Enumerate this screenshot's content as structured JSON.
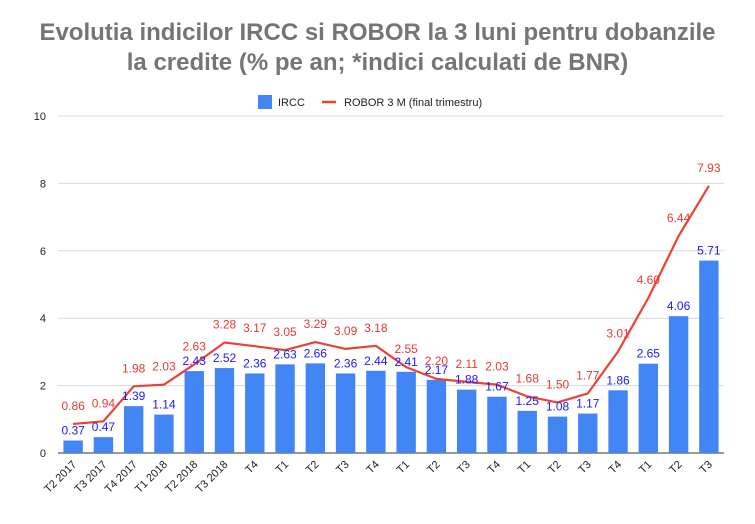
{
  "chart_data": {
    "type": "bar",
    "title_lines": [
      "Evolutia indicilor IRCC si ROBOR la 3 luni pentru dobanzile",
      "la credite (% pe an; *indici calculati de BNR)"
    ],
    "categories": [
      "T2 2017",
      "T3 2017",
      "T4 2017",
      "T1 2018",
      "T2 2018",
      "T3 2018",
      "T4",
      "T1",
      "T2",
      "T3",
      "T4",
      "T1",
      "T2",
      "T3",
      "T4",
      "T1",
      "T2",
      "T3",
      "T4",
      "T1",
      "T2",
      "T3"
    ],
    "series": [
      {
        "name": "IRCC",
        "type": "bar",
        "color": "#4285f4",
        "label_color": "#1a1aff",
        "values": [
          0.37,
          0.47,
          1.39,
          1.14,
          2.43,
          2.52,
          2.36,
          2.63,
          2.66,
          2.36,
          2.44,
          2.41,
          2.17,
          1.88,
          1.67,
          1.25,
          1.08,
          1.17,
          1.86,
          2.65,
          4.06,
          5.71
        ],
        "labels": [
          "0.37",
          "0.47",
          "1.39",
          "1.14",
          "2.43",
          "2.52",
          "2.36",
          "2.63",
          "2.66",
          "2.36",
          "2.44",
          "2.41",
          "2.17",
          "1.88",
          "1.67",
          "1.25",
          "1.08",
          "1.17",
          "1.86",
          "2.65",
          "4.06",
          "5.71"
        ]
      },
      {
        "name": "ROBOR 3 M (final trimestru)",
        "type": "line",
        "color": "#ea4335",
        "label_color": "#e53935",
        "values": [
          0.86,
          0.94,
          1.98,
          2.03,
          2.63,
          3.28,
          3.17,
          3.05,
          3.29,
          3.09,
          3.18,
          2.55,
          2.2,
          2.11,
          2.03,
          1.68,
          1.5,
          1.77,
          3.01,
          4.6,
          6.44,
          7.93
        ],
        "labels": [
          "0.86",
          "0.94",
          "1.98",
          "2.03",
          "2.63",
          "3.28",
          "3.17",
          "3.05",
          "3.29",
          "3.09",
          "3.18",
          "2.55",
          "2.20",
          "2.11",
          "2.03",
          "1.68",
          "1.50",
          "1.77",
          "3.01",
          "4.60",
          "6.44",
          "7.93"
        ]
      }
    ],
    "ylim": [
      0,
      10
    ],
    "yticks": [
      "0",
      "2",
      "4",
      "6",
      "8",
      "10"
    ],
    "grid": true,
    "legend_position": "top"
  }
}
